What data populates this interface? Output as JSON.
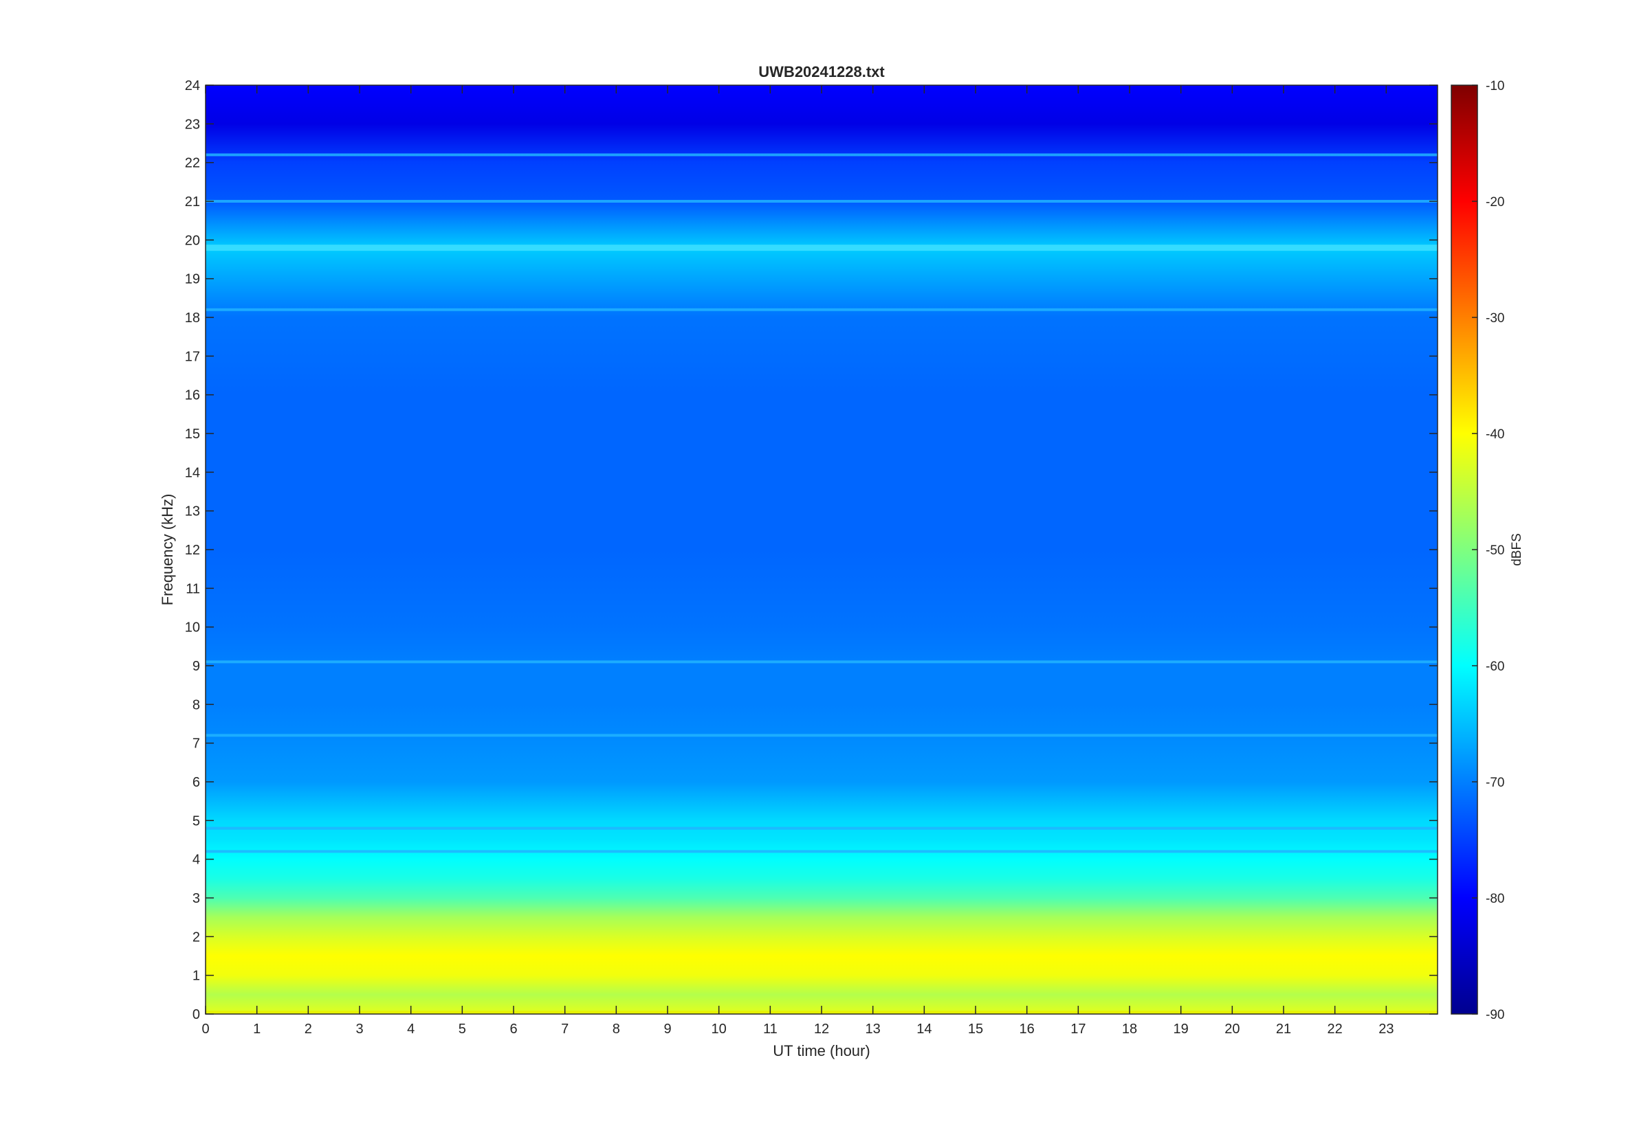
{
  "chart_data": {
    "type": "heatmap",
    "title": "UWB20241228.txt",
    "xlabel": "UT time (hour)",
    "ylabel": "Frequency (kHz)",
    "xlim": [
      0,
      24
    ],
    "ylim": [
      0,
      24
    ],
    "x_ticks": [
      "0",
      "1",
      "2",
      "3",
      "4",
      "5",
      "6",
      "7",
      "8",
      "9",
      "10",
      "11",
      "12",
      "13",
      "14",
      "15",
      "16",
      "17",
      "18",
      "19",
      "20",
      "21",
      "22",
      "23"
    ],
    "y_ticks": [
      "0",
      "1",
      "2",
      "3",
      "4",
      "5",
      "6",
      "7",
      "8",
      "9",
      "10",
      "11",
      "12",
      "13",
      "14",
      "15",
      "16",
      "17",
      "18",
      "19",
      "20",
      "21",
      "22",
      "23",
      "24"
    ],
    "colorbar": {
      "label": "dBFS",
      "range": [
        -90,
        -10
      ],
      "ticks": [
        "-90",
        "-80",
        "-70",
        "-60",
        "-50",
        "-40",
        "-30",
        "-20",
        "-10"
      ],
      "colormap": "jet"
    },
    "approx_level_dbfs_by_frequency_khz": {
      "frequency_khz": [
        0,
        0.5,
        1,
        1.5,
        2,
        2.5,
        3,
        3.5,
        4,
        4.5,
        5,
        6,
        7,
        8,
        9,
        10,
        12,
        14,
        16,
        18,
        19.8,
        21,
        22,
        23,
        24
      ],
      "level_dbfs": [
        -42,
        -46,
        -41,
        -40,
        -43,
        -47,
        -54,
        -58,
        -60,
        -62,
        -63,
        -68,
        -69,
        -70,
        -70,
        -71,
        -72,
        -72,
        -72,
        -71,
        -64,
        -73,
        -75,
        -82,
        -80
      ]
    },
    "narrowband_lines_khz": [
      0.05,
      19.8,
      18.2,
      22.2,
      21.0,
      4.8,
      4.2,
      7.2,
      9.1
    ],
    "grid": false,
    "colors": {
      "background": "#ffffff",
      "axis": "#262626",
      "dominant_fill": "#0a4ff5"
    }
  }
}
